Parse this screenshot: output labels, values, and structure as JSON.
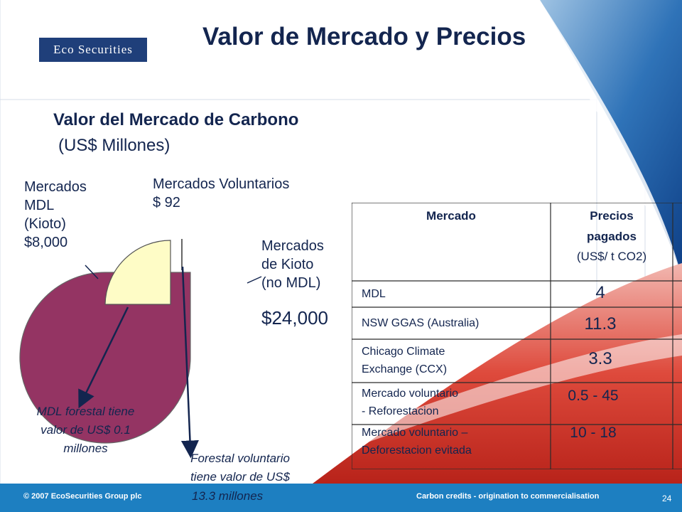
{
  "logo": {
    "text": "Eco Securities"
  },
  "title": "Valor de Mercado y Precios",
  "section": {
    "title": "Valor del Mercado de Carbono",
    "units": "(US$ Millones)"
  },
  "pie": {
    "labels": {
      "mdl": "Mercados\nMDL\n(Kioto)\n$8,000",
      "voluntarios": "Mercados Voluntarios\n$ 92",
      "kioto": "Mercados\nde Kioto\n(no MDL)",
      "kioto_value": "$24,000"
    },
    "notes": {
      "mdl_forestal": "MDL forestal tiene\nvalor de US$ 0.1\nmillones",
      "forestal_vol": "Forestal voluntario\ntiene valor de US$",
      "forestal_vol_tail": "13.3 millones"
    },
    "colors": {
      "kioto": "#943463",
      "mdl": "#fefcc6"
    }
  },
  "table": {
    "header_mercado": "Mercado",
    "header_precios": "Precios\npagados",
    "header_units": "(US$/ t CO2)",
    "rows": [
      {
        "mercado": "MDL",
        "precio": "4"
      },
      {
        "mercado": "NSW GGAS (Australia)",
        "precio": "11.3"
      },
      {
        "mercado": "Chicago Climate\n      Exchange (CCX)",
        "precio": "3.3"
      },
      {
        "mercado": "Mercado voluntario\n- Reforestacion",
        "precio": "0.5 - 45"
      },
      {
        "mercado": "Mercado voluntario –\n      Deforestacion evitada",
        "precio": "10 - 18"
      }
    ]
  },
  "footer": {
    "copyright": "© 2007 EcoSecurities Group plc",
    "tagline": "Carbon credits - origination to commercialisation",
    "page": "24"
  }
}
